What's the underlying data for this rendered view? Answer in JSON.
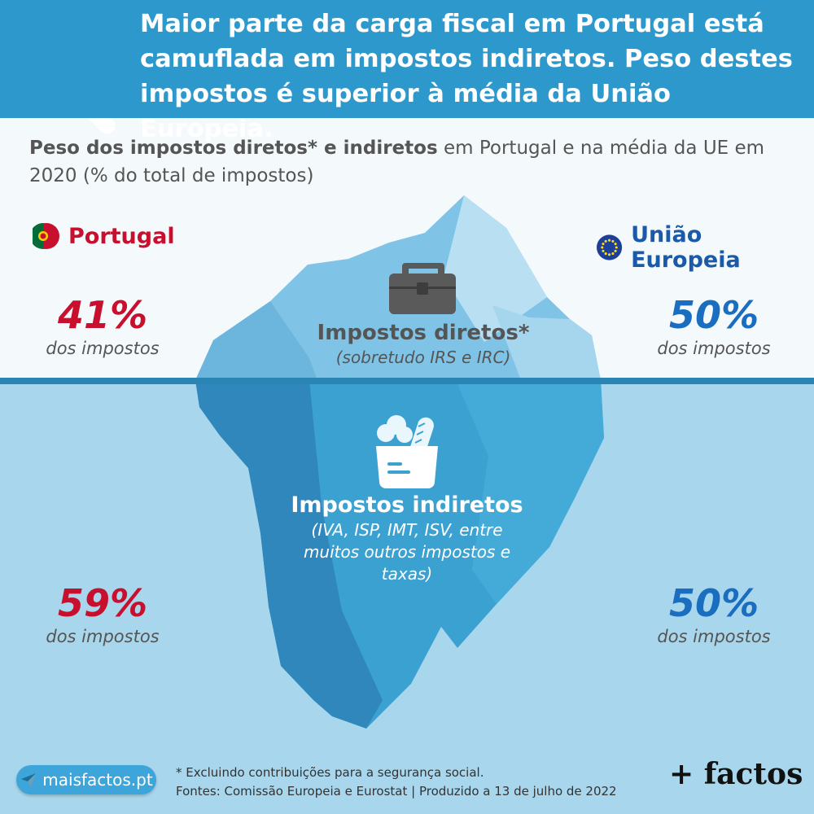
{
  "header": {
    "title": "Maior parte da carga fiscal em Portugal está camuflada em impostos indiretos. Peso destes impostos é superior à média da União Europeia.",
    "icon": "magnifier-coins-hand-icon"
  },
  "subtitle": {
    "bold": "Peso dos impostos diretos* e indiretos",
    "rest": " em Portugal e na média da UE em 2020 (% do total de impostos)"
  },
  "countries": {
    "portugal": {
      "name": "Portugal",
      "icon": "portugal-flag-icon"
    },
    "eu": {
      "name": "União Europeia",
      "icon": "eu-flag-icon"
    }
  },
  "direct": {
    "title": "Impostos diretos*",
    "subtitle": "(sobretudo IRS e IRC)",
    "icon": "briefcase-icon",
    "portugal": {
      "value": "41%",
      "label": "dos impostos"
    },
    "eu": {
      "value": "50%",
      "label": "dos impostos"
    }
  },
  "indirect": {
    "title": "Impostos indiretos",
    "subtitle": "(IVA, ISP, IMT, ISV, entre muitos outros impostos e taxas)",
    "icon": "grocery-bag-icon",
    "portugal": {
      "value": "59%",
      "label": "dos impostos"
    },
    "eu": {
      "value": "50%",
      "label": "dos impostos"
    }
  },
  "footer": {
    "site": "maisfactos.pt",
    "note": "* Excluindo contribuições para a segurança social.",
    "sources": "Fontes: Comissão Europeia e Eurostat | Produzido a 13 de julho de 2022",
    "brand": "+ factos"
  },
  "colors": {
    "header": "#2c98cc",
    "portugal": "#c8102e",
    "eu": "#1a6dbf",
    "water": "#a8d6ec"
  }
}
